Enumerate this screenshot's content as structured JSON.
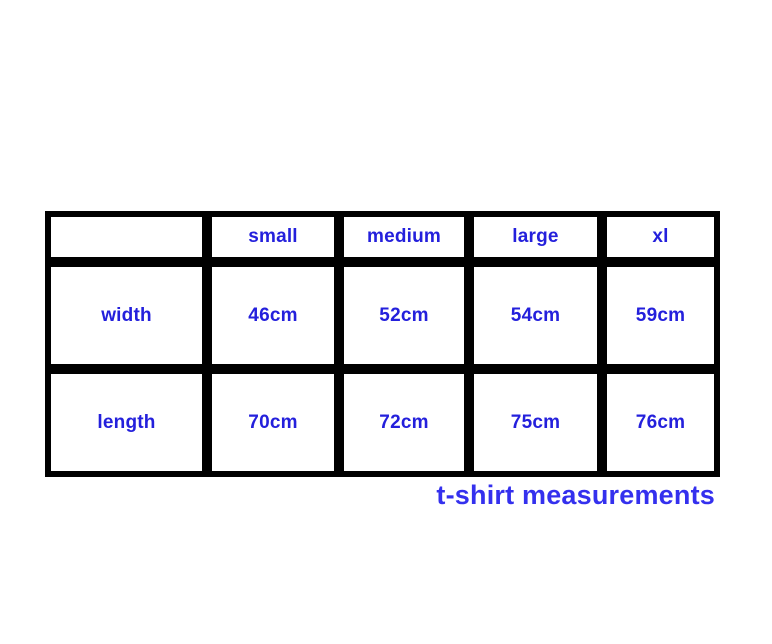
{
  "colors": {
    "table-text": "#2420dc",
    "caption-text": "#3430ee",
    "border-color": "#000000",
    "page-bg": "#ffffff"
  },
  "table": {
    "columns": [
      "",
      "small",
      "medium",
      "large",
      "xl"
    ],
    "rows": [
      {
        "label": "width",
        "values": [
          "46cm",
          "52cm",
          "54cm",
          "59cm"
        ]
      },
      {
        "label": "length",
        "values": [
          "70cm",
          "72cm",
          "75cm",
          "76cm"
        ]
      }
    ]
  },
  "caption": {
    "text": "t-shirt measurements"
  },
  "chart_data": {
    "type": "table",
    "title": "t-shirt measurements",
    "columns": [
      "",
      "small",
      "medium",
      "large",
      "xl"
    ],
    "rows": [
      [
        "width",
        "46cm",
        "52cm",
        "54cm",
        "59cm"
      ],
      [
        "length",
        "70cm",
        "72cm",
        "75cm",
        "76cm"
      ]
    ],
    "values_cm": {
      "width": {
        "small": 46,
        "medium": 52,
        "large": 54,
        "xl": 59
      },
      "length": {
        "small": 70,
        "medium": 72,
        "large": 75,
        "xl": 76
      }
    }
  }
}
